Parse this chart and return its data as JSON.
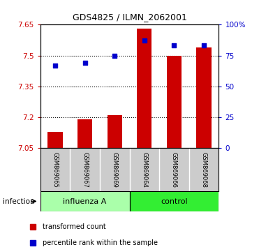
{
  "title": "GDS4825 / ILMN_2062001",
  "samples": [
    "GSM869065",
    "GSM869067",
    "GSM869069",
    "GSM869064",
    "GSM869066",
    "GSM869068"
  ],
  "groups": [
    "influenza A",
    "influenza A",
    "influenza A",
    "control",
    "control",
    "control"
  ],
  "group_labels": [
    "influenza A",
    "control"
  ],
  "influenza_color": "#aaffaa",
  "control_color": "#33ee33",
  "transformed_counts": [
    7.13,
    7.19,
    7.21,
    7.63,
    7.5,
    7.54
  ],
  "percentile_ranks": [
    67,
    69,
    75,
    87,
    83,
    83
  ],
  "y_min": 7.05,
  "y_max": 7.65,
  "y_ticks": [
    7.05,
    7.2,
    7.35,
    7.5,
    7.65
  ],
  "y_tick_labels": [
    "7.05",
    "7.2",
    "7.35",
    "7.5",
    "7.65"
  ],
  "right_y_ticks": [
    0,
    25,
    50,
    75,
    100
  ],
  "right_y_labels": [
    "0",
    "25",
    "50",
    "75",
    "100%"
  ],
  "bar_color": "#cc0000",
  "dot_color": "#0000cc",
  "bar_width": 0.5,
  "dot_size": 25,
  "left_tick_color": "#cc0000",
  "right_tick_color": "#0000cc",
  "infection_label": "infection",
  "legend_bar_label": "transformed count",
  "legend_dot_label": "percentile rank within the sample",
  "bg_color": "#ffffff",
  "plot_bg_color": "#ffffff",
  "label_box_color": "#cccccc",
  "title_fontsize": 9,
  "tick_fontsize": 7.5,
  "sample_fontsize": 6,
  "group_fontsize": 8,
  "legend_fontsize": 7
}
